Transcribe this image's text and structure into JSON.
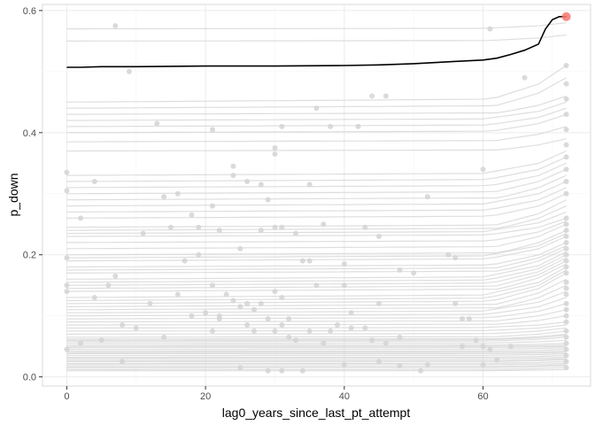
{
  "chart_data": {
    "type": "line",
    "xlabel": "lag0_years_since_last_pt_attempt",
    "ylabel": "p_down",
    "xlim": [
      -3.5,
      75.5
    ],
    "ylim": [
      -0.015,
      0.61
    ],
    "x_ticks": [
      0,
      20,
      40,
      60
    ],
    "y_ticks": [
      0.0,
      0.2,
      0.4,
      0.6
    ],
    "x_tick_labels": [
      "0",
      "20",
      "40",
      "60"
    ],
    "y_tick_labels": [
      "0.0",
      "0.2",
      "0.4",
      "0.6"
    ],
    "grid": true,
    "legend": "none",
    "highlight_series": {
      "color": "#000000",
      "x": [
        0,
        2,
        5,
        10,
        20,
        30,
        40,
        45,
        50,
        55,
        60,
        62,
        64,
        66,
        68,
        69,
        70,
        71,
        72
      ],
      "y": [
        0.507,
        0.507,
        0.508,
        0.508,
        0.509,
        0.509,
        0.51,
        0.511,
        0.513,
        0.516,
        0.519,
        0.522,
        0.528,
        0.535,
        0.545,
        0.57,
        0.585,
        0.59,
        0.59
      ]
    },
    "highlight_point": {
      "x": 72,
      "y": 0.59,
      "color": "#F8766D"
    },
    "background_series": {
      "color": "#d3d3d3",
      "note_levels_at_x0": [
        0.57,
        0.55,
        0.45,
        0.44,
        0.43,
        0.42,
        0.41,
        0.4,
        0.385,
        0.37,
        0.33,
        0.32,
        0.31,
        0.3,
        0.29,
        0.28,
        0.27,
        0.26,
        0.245,
        0.24,
        0.235,
        0.23,
        0.22,
        0.21,
        0.2,
        0.195,
        0.19,
        0.18,
        0.175,
        0.17,
        0.16,
        0.155,
        0.15,
        0.145,
        0.14,
        0.13,
        0.125,
        0.12,
        0.115,
        0.11,
        0.105,
        0.1,
        0.095,
        0.09,
        0.085,
        0.08,
        0.075,
        0.07,
        0.065,
        0.062,
        0.06,
        0.058,
        0.055,
        0.052,
        0.05,
        0.048,
        0.045,
        0.042,
        0.04,
        0.038,
        0.035,
        0.032,
        0.03,
        0.027,
        0.025,
        0.022,
        0.02,
        0.017,
        0.015,
        0.012,
        0.01
      ],
      "end_values_at_x72": [
        0.58,
        0.56,
        0.51,
        0.49,
        0.46,
        0.45,
        0.44,
        0.43,
        0.41,
        0.39,
        0.37,
        0.36,
        0.35,
        0.34,
        0.33,
        0.32,
        0.31,
        0.3,
        0.29,
        0.28,
        0.27,
        0.26,
        0.255,
        0.25,
        0.24,
        0.235,
        0.23,
        0.22,
        0.215,
        0.21,
        0.205,
        0.2,
        0.195,
        0.19,
        0.185,
        0.18,
        0.175,
        0.17,
        0.16,
        0.15,
        0.14,
        0.13,
        0.12,
        0.11,
        0.1,
        0.09,
        0.085,
        0.08,
        0.075,
        0.07,
        0.068,
        0.065,
        0.06,
        0.055,
        0.052,
        0.05,
        0.048,
        0.045,
        0.042,
        0.04,
        0.038,
        0.035,
        0.032,
        0.03,
        0.028,
        0.025,
        0.022,
        0.02,
        0.018,
        0.015,
        0.012
      ]
    },
    "scatter_points": {
      "color": "#d3d3d3",
      "points": [
        [
          7,
          0.575
        ],
        [
          9,
          0.5
        ],
        [
          13,
          0.415
        ],
        [
          21,
          0.405
        ],
        [
          31,
          0.41
        ],
        [
          36,
          0.44
        ],
        [
          38,
          0.41
        ],
        [
          42,
          0.41
        ],
        [
          44,
          0.46
        ],
        [
          46,
          0.46
        ],
        [
          61,
          0.57
        ],
        [
          66,
          0.49
        ],
        [
          0,
          0.335
        ],
        [
          0,
          0.305
        ],
        [
          4,
          0.32
        ],
        [
          14,
          0.295
        ],
        [
          16,
          0.3
        ],
        [
          18,
          0.265
        ],
        [
          19,
          0.245
        ],
        [
          21,
          0.28
        ],
        [
          24,
          0.345
        ],
        [
          24,
          0.33
        ],
        [
          26,
          0.32
        ],
        [
          28,
          0.315
        ],
        [
          29,
          0.29
        ],
        [
          30,
          0.375
        ],
        [
          30,
          0.365
        ],
        [
          35,
          0.315
        ],
        [
          45,
          0.23
        ],
        [
          52,
          0.295
        ],
        [
          60,
          0.34
        ],
        [
          2,
          0.26
        ],
        [
          11,
          0.235
        ],
        [
          15,
          0.245
        ],
        [
          17,
          0.19
        ],
        [
          19,
          0.2
        ],
        [
          22,
          0.24
        ],
        [
          25,
          0.21
        ],
        [
          28,
          0.24
        ],
        [
          30,
          0.245
        ],
        [
          31,
          0.245
        ],
        [
          33,
          0.235
        ],
        [
          35,
          0.19
        ],
        [
          37,
          0.25
        ],
        [
          40,
          0.185
        ],
        [
          43,
          0.245
        ],
        [
          0,
          0.195
        ],
        [
          0,
          0.15
        ],
        [
          0,
          0.14
        ],
        [
          4,
          0.13
        ],
        [
          6,
          0.15
        ],
        [
          7,
          0.165
        ],
        [
          12,
          0.12
        ],
        [
          16,
          0.135
        ],
        [
          20,
          0.105
        ],
        [
          21,
          0.15
        ],
        [
          22,
          0.1
        ],
        [
          23,
          0.135
        ],
        [
          24,
          0.125
        ],
        [
          25,
          0.115
        ],
        [
          26,
          0.12
        ],
        [
          27,
          0.11
        ],
        [
          28,
          0.12
        ],
        [
          29,
          0.095
        ],
        [
          30,
          0.14
        ],
        [
          31,
          0.13
        ],
        [
          32,
          0.095
        ],
        [
          34,
          0.19
        ],
        [
          36,
          0.15
        ],
        [
          38,
          0.075
        ],
        [
          40,
          0.15
        ],
        [
          41,
          0.105
        ],
        [
          43,
          0.08
        ],
        [
          45,
          0.12
        ],
        [
          48,
          0.175
        ],
        [
          50,
          0.17
        ],
        [
          55,
          0.2
        ],
        [
          56,
          0.195
        ],
        [
          56,
          0.12
        ],
        [
          57,
          0.095
        ],
        [
          58,
          0.095
        ],
        [
          60,
          0.05
        ],
        [
          0,
          0.045
        ],
        [
          2,
          0.055
        ],
        [
          5,
          0.06
        ],
        [
          8,
          0.085
        ],
        [
          10,
          0.08
        ],
        [
          14,
          0.065
        ],
        [
          18,
          0.1
        ],
        [
          21,
          0.075
        ],
        [
          22,
          0.095
        ],
        [
          26,
          0.085
        ],
        [
          27,
          0.075
        ],
        [
          30,
          0.075
        ],
        [
          31,
          0.085
        ],
        [
          32,
          0.065
        ],
        [
          33,
          0.06
        ],
        [
          35,
          0.075
        ],
        [
          37,
          0.055
        ],
        [
          39,
          0.085
        ],
        [
          41,
          0.08
        ],
        [
          44,
          0.06
        ],
        [
          46,
          0.055
        ],
        [
          48,
          0.065
        ],
        [
          52,
          0.02
        ],
        [
          57,
          0.05
        ],
        [
          59,
          0.06
        ],
        [
          61,
          0.045
        ],
        [
          64,
          0.05
        ],
        [
          8,
          0.025
        ],
        [
          25,
          0.015
        ],
        [
          29,
          0.01
        ],
        [
          31,
          0.01
        ],
        [
          34,
          0.01
        ],
        [
          40,
          0.02
        ],
        [
          45,
          0.025
        ],
        [
          48,
          0.018
        ],
        [
          51,
          0.01
        ],
        [
          60,
          0.02
        ],
        [
          62,
          0.028
        ],
        [
          72,
          0.51
        ],
        [
          72,
          0.48
        ],
        [
          72,
          0.455
        ],
        [
          72,
          0.43
        ],
        [
          72,
          0.405
        ],
        [
          72,
          0.38
        ],
        [
          72,
          0.36
        ],
        [
          72,
          0.34
        ],
        [
          72,
          0.32
        ],
        [
          72,
          0.3
        ],
        [
          72,
          0.26
        ],
        [
          72,
          0.25
        ],
        [
          72,
          0.24
        ],
        [
          72,
          0.23
        ],
        [
          72,
          0.22
        ],
        [
          72,
          0.21
        ],
        [
          72,
          0.2
        ],
        [
          72,
          0.19
        ],
        [
          72,
          0.18
        ],
        [
          72,
          0.17
        ],
        [
          72,
          0.155
        ],
        [
          72,
          0.145
        ],
        [
          72,
          0.135
        ],
        [
          72,
          0.12
        ],
        [
          72,
          0.11
        ],
        [
          72,
          0.1
        ],
        [
          72,
          0.09
        ],
        [
          72,
          0.075
        ],
        [
          72,
          0.065
        ],
        [
          72,
          0.055
        ],
        [
          72,
          0.045
        ],
        [
          72,
          0.035
        ],
        [
          72,
          0.025
        ],
        [
          72,
          0.015
        ]
      ]
    }
  }
}
